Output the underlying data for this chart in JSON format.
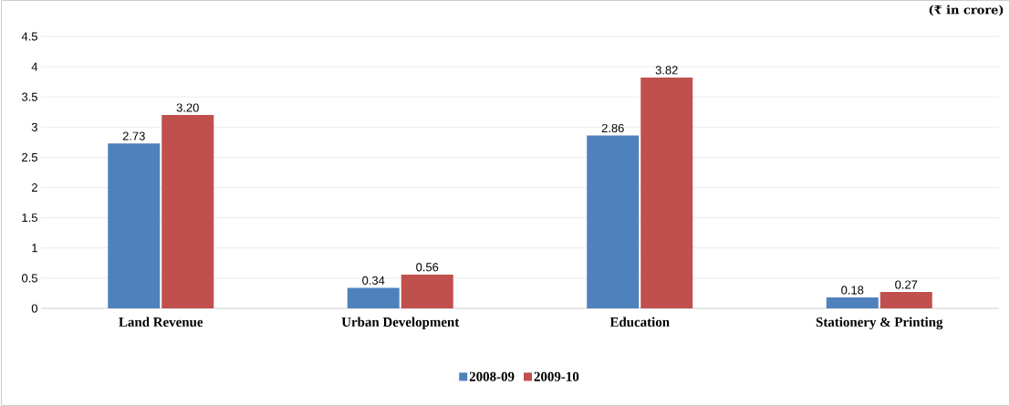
{
  "chart_data": {
    "type": "bar",
    "categories": [
      "Land Revenue",
      "Urban Development",
      "Education",
      "Stationery & Printing"
    ],
    "series": [
      {
        "name": "2008-09",
        "color": "#4f81bd",
        "values": [
          2.73,
          0.34,
          2.86,
          0.18
        ]
      },
      {
        "name": "2009-10",
        "color": "#c0504d",
        "values": [
          3.2,
          0.56,
          3.82,
          0.27
        ]
      }
    ],
    "value_labels": [
      [
        "2.73",
        "0.34",
        "2.86",
        "0.18"
      ],
      [
        "3.20",
        "0.56",
        "3.82",
        "0.27"
      ]
    ],
    "ylim": [
      0,
      4.5
    ],
    "yticks": [
      0,
      0.5,
      1,
      1.5,
      2,
      2.5,
      3,
      3.5,
      4,
      4.5
    ],
    "grid": "y",
    "legend": "bottom",
    "annotations": [
      "(₹ in crore)"
    ]
  }
}
